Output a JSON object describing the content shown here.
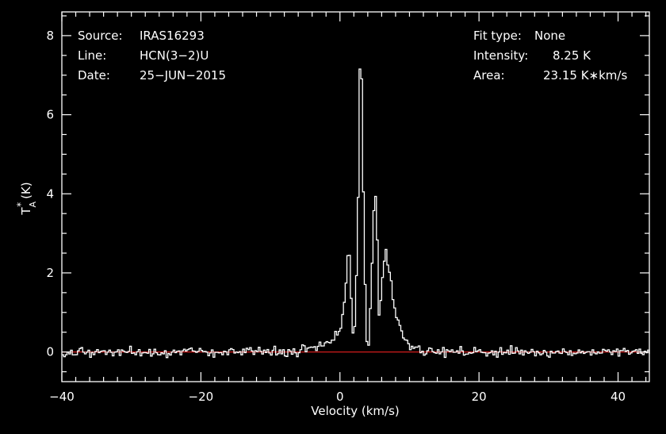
{
  "header": {
    "source_label": "Source:",
    "source_value": "IRAS16293",
    "line_label": "Line:",
    "line_value": "HCN(3−2)U",
    "date_label": "Date:",
    "date_value": "25−JUN−2015",
    "fit_label": "Fit type:",
    "fit_value": "None",
    "intensity_label": "Intensity:",
    "intensity_value": "8.25 K",
    "area_label": "Area:",
    "area_value": "23.15 K∗km/s"
  },
  "colors": {
    "background": "#000000",
    "spectrum": "#ffffff",
    "baseline": "#d01c1c",
    "axes": "#ffffff"
  },
  "chart_data": {
    "type": "line",
    "style": "step",
    "xlabel": "Velocity (km/s)",
    "ylabel_main": "T",
    "ylabel_sup": "*",
    "ylabel_sub": "A",
    "ylabel_unit": "(K)",
    "xlim": [
      -40,
      44.5
    ],
    "ylim": [
      -0.75,
      8.6
    ],
    "xticks": [
      -40,
      -20,
      0,
      20,
      40
    ],
    "xtick_labels": [
      "−40",
      "−20",
      "0",
      "20",
      "40"
    ],
    "yticks": [
      0,
      2,
      4,
      6,
      8
    ],
    "ytick_labels": [
      "0",
      "2",
      "4",
      "6",
      "8"
    ],
    "baseline": 0,
    "noise_rms": 0.08,
    "channel_width": 0.25,
    "series": [
      {
        "profile_points": [
          [
            -40,
            0.0
          ],
          [
            -6,
            0.0
          ],
          [
            -5,
            0.08
          ],
          [
            -3,
            0.14
          ],
          [
            -1,
            0.3
          ],
          [
            0,
            0.55
          ],
          [
            0.5,
            1.0
          ],
          [
            0.9,
            1.8
          ],
          [
            1.1,
            2.45
          ],
          [
            1.4,
            2.4
          ],
          [
            1.6,
            1.4
          ],
          [
            1.8,
            0.45
          ],
          [
            2.0,
            0.3
          ],
          [
            2.3,
            1.4
          ],
          [
            2.6,
            3.5
          ],
          [
            2.8,
            6.5
          ],
          [
            3.0,
            8.25
          ],
          [
            3.2,
            6.0
          ],
          [
            3.5,
            2.6
          ],
          [
            3.8,
            0.4
          ],
          [
            4.0,
            0.0
          ],
          [
            4.2,
            0.3
          ],
          [
            4.6,
            2.2
          ],
          [
            5.0,
            4.25
          ],
          [
            5.3,
            3.5
          ],
          [
            5.6,
            0.9
          ],
          [
            5.8,
            1.1
          ],
          [
            6.2,
            2.1
          ],
          [
            6.6,
            2.55
          ],
          [
            7.0,
            2.2
          ],
          [
            7.6,
            1.4
          ],
          [
            8.2,
            0.85
          ],
          [
            9.0,
            0.45
          ],
          [
            10.0,
            0.2
          ],
          [
            11.0,
            0.12
          ],
          [
            12.0,
            0.05
          ],
          [
            14.0,
            0.0
          ],
          [
            44.5,
            0.0
          ]
        ]
      }
    ]
  }
}
